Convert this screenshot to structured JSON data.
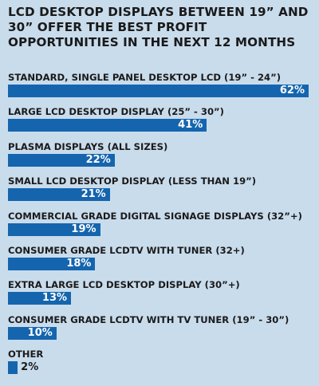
{
  "chart_data": {
    "type": "bar",
    "orientation": "horizontal",
    "title": "LCD DESKTOP DISPLAYS BETWEEN 19” AND 30” OFFER THE BEST PROFIT OPPORTUNITIES IN THE NEXT 12 MONTHS",
    "categories": [
      "STANDARD, SINGLE PANEL DESKTOP LCD (19” - 24”)",
      "LARGE LCD DESKTOP DISPLAY (25” - 30”)",
      "PLASMA DISPLAYS (ALL SIZES)",
      "SMALL LCD DESKTOP DISPLAY (LESS THAN 19”)",
      "COMMERCIAL GRADE DIGITAL SIGNAGE DISPLAYS (32”+)",
      "CONSUMER GRADE LCDTV WITH TUNER (32+)",
      "EXTRA LARGE LCD DESKTOP DISPLAY (30”+)",
      "CONSUMER GRADE LCDTV WITH TV TUNER (19” - 30”)",
      "OTHER"
    ],
    "values": [
      62,
      41,
      22,
      21,
      19,
      18,
      13,
      10,
      2
    ],
    "value_labels": [
      "62%",
      "41%",
      "22%",
      "21%",
      "19%",
      "18%",
      "13%",
      "10%",
      "2%"
    ],
    "xlim": [
      0,
      62
    ],
    "colors": {
      "bar": "#1565ae",
      "background": "#c9dcec",
      "text": "#1a1a1a",
      "bar_text": "#ffffff"
    }
  }
}
